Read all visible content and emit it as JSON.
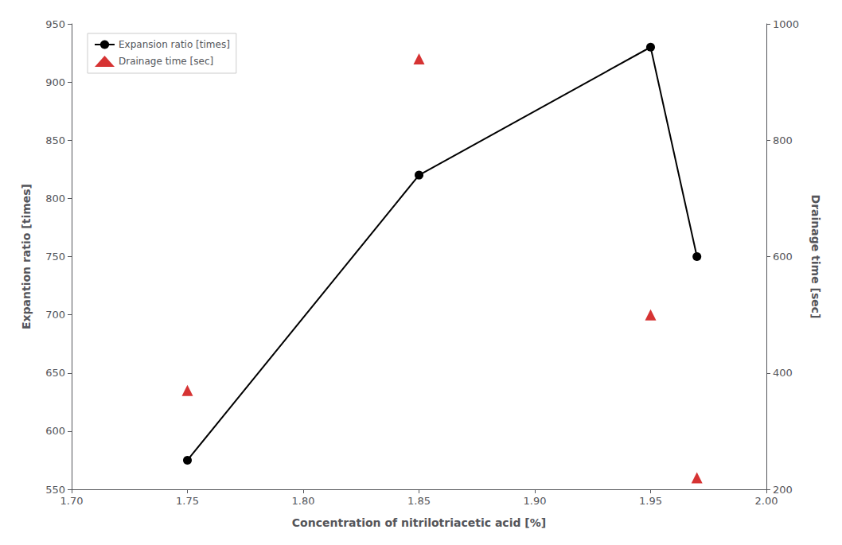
{
  "chart_data": {
    "type": "line",
    "xlabel": "Concentration of nitrilotriacetic acid [%]",
    "ylabel": "Expantion ratio [times]",
    "y2label": "Drainage time [sec]",
    "x": [
      1.75,
      1.85,
      1.95,
      1.97
    ],
    "series": [
      {
        "name": "Expansion ratio [times]",
        "type": "line",
        "color": "#000000",
        "marker": "circle",
        "values": [
          575,
          820,
          930,
          750
        ]
      },
      {
        "name": "Drainage time [sec]",
        "type": "scatter",
        "axis": "y2",
        "color": "#cc0000",
        "marker": "triangle",
        "values": [
          370,
          940,
          500,
          220
        ]
      }
    ],
    "xlim": [
      1.7,
      2.0
    ],
    "xticks": [
      {
        "value": 1.7,
        "label": "1.70"
      },
      1.75,
      {
        "value": 1.8,
        "label": "1.80"
      },
      1.85,
      {
        "value": 1.9,
        "label": "1.90"
      },
      1.95,
      {
        "value": 2.0,
        "label": "2.00"
      }
    ],
    "ylim": [
      550,
      950
    ],
    "yticks": [
      550,
      600,
      650,
      700,
      750,
      800,
      850,
      900,
      950
    ],
    "y2lim": [
      200,
      1000
    ],
    "y2ticks": [
      200,
      400,
      600,
      800,
      1000
    ],
    "grid": false,
    "legend": "upper left"
  }
}
